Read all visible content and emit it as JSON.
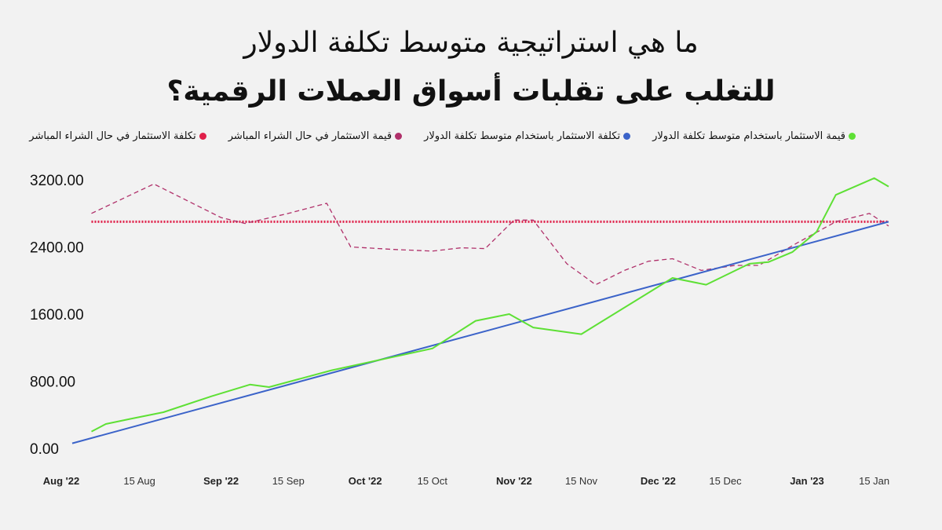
{
  "title_line1": "ما هي استراتيجية متوسط تكلفة الدولار",
  "title_line2": "للتغلب على تقلبات أسواق العملات الرقمية؟",
  "chart_data": {
    "type": "line",
    "ylim": [
      0,
      3400
    ],
    "y_ticks": [
      {
        "value": 0,
        "label": "0.00"
      },
      {
        "value": 800,
        "label": "800.00"
      },
      {
        "value": 1600,
        "label": "1600.00"
      },
      {
        "value": 2400,
        "label": "2400.00"
      },
      {
        "value": 3200,
        "label": "3200.00"
      }
    ],
    "x_ticks": [
      {
        "value": 0,
        "label": "Aug '22",
        "major": true
      },
      {
        "value": 14,
        "label": "15 Aug",
        "major": false
      },
      {
        "value": 31,
        "label": "Sep '22",
        "major": true
      },
      {
        "value": 45,
        "label": "15 Sep",
        "major": false
      },
      {
        "value": 61,
        "label": "Oct '22",
        "major": true
      },
      {
        "value": 75,
        "label": "15 Oct",
        "major": false
      },
      {
        "value": 92,
        "label": "Nov '22",
        "major": true
      },
      {
        "value": 106,
        "label": "15 Nov",
        "major": false
      },
      {
        "value": 122,
        "label": "Dec '22",
        "major": true
      },
      {
        "value": 136,
        "label": "15 Dec",
        "major": false
      },
      {
        "value": 153,
        "label": "Jan '23",
        "major": true
      },
      {
        "value": 167,
        "label": "15 Jan",
        "major": false
      }
    ],
    "series": [
      {
        "name": "تكلفة الاستثمار في حال الشراء المباشر",
        "color": "#e0204a",
        "style": "dotted",
        "x": [
          4,
          170
        ],
        "y": [
          2700,
          2700
        ]
      },
      {
        "name": "قيمة الاستثمار في حال الشراء المباشر",
        "color": "#b0306a",
        "style": "dashed",
        "x": [
          4,
          17,
          31,
          36,
          45,
          53,
          58,
          67,
          75,
          81,
          86,
          92,
          96,
          103,
          109,
          115,
          120,
          125,
          131,
          138,
          143,
          151,
          159,
          166,
          170
        ],
        "y": [
          2800,
          3150,
          2750,
          2680,
          2800,
          2920,
          2400,
          2370,
          2350,
          2390,
          2380,
          2720,
          2720,
          2200,
          1950,
          2120,
          2230,
          2260,
          2120,
          2180,
          2180,
          2450,
          2700,
          2800,
          2650
        ]
      },
      {
        "name": "تكلفة الاستثمار باستخدام متوسط تكلفة الدولار",
        "color": "#3b63c9",
        "style": "solid",
        "x": [
          0,
          170
        ],
        "y": [
          60,
          2700
        ]
      },
      {
        "name": "قيمة الاستثمار باستخدام متوسط تكلفة الدولار",
        "color": "#5ee035",
        "style": "solid",
        "x": [
          4,
          7,
          12,
          19,
          29,
          37,
          41,
          54,
          75,
          84,
          91,
          96,
          106,
          125,
          132,
          141,
          145,
          150,
          155,
          159,
          167,
          170
        ],
        "y": [
          200,
          290,
          350,
          430,
          620,
          760,
          730,
          930,
          1190,
          1520,
          1600,
          1440,
          1360,
          2030,
          1950,
          2200,
          2220,
          2340,
          2580,
          3020,
          3220,
          3120
        ]
      }
    ]
  }
}
